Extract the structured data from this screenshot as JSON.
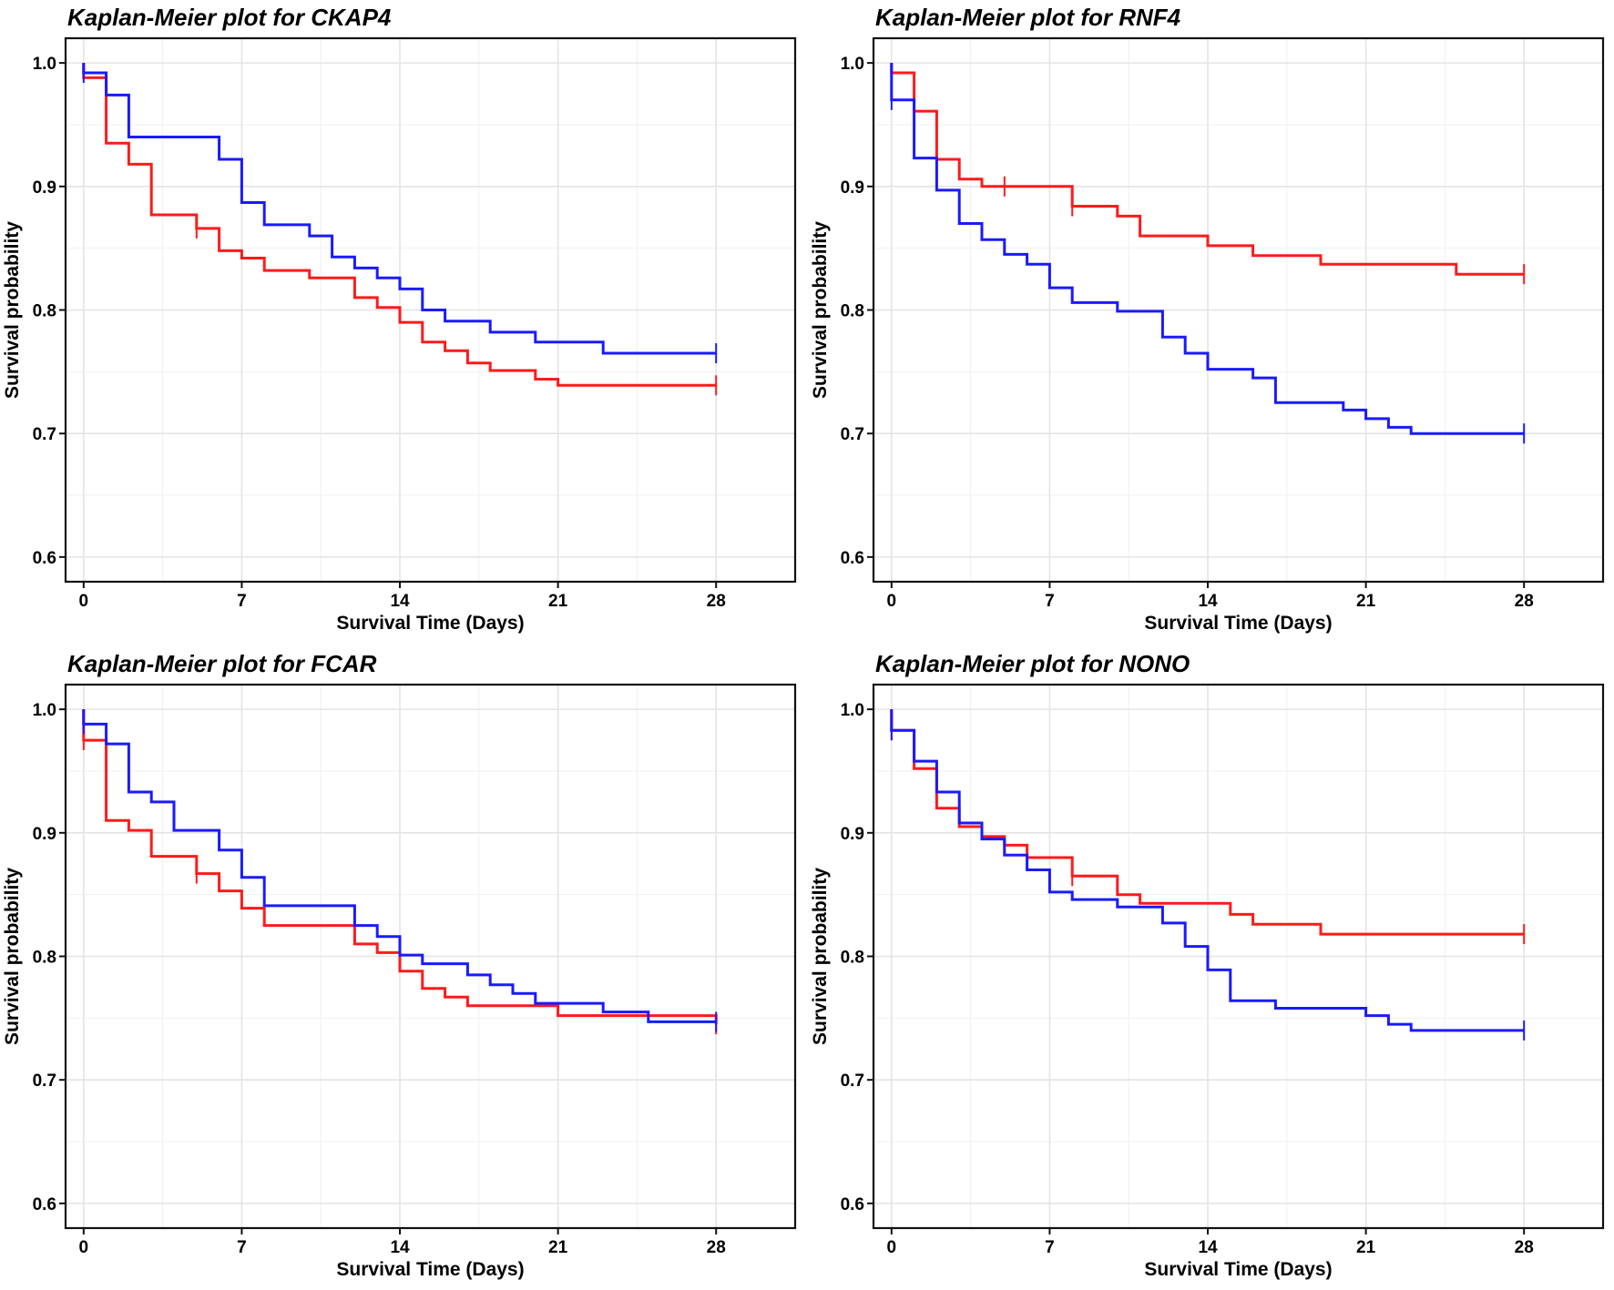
{
  "chart_data": [
    {
      "type": "line",
      "title": "Kaplan-Meier plot for CKAP4",
      "xlabel": "Survival Time (Days)",
      "ylabel": "Survival probability",
      "xlim": [
        -0.8,
        31.5
      ],
      "ylim": [
        0.58,
        1.02
      ],
      "xticks": [
        0,
        7,
        14,
        21,
        28
      ],
      "yticks": [
        0.6,
        0.7,
        0.8,
        0.9,
        1.0
      ],
      "yticklabels": [
        "0.6",
        "0.7",
        "0.8",
        "0.9",
        "1.0"
      ],
      "grid": true,
      "series": [
        {
          "name": "red",
          "color": "#ff1a1a",
          "x": [
            0,
            1,
            2,
            3,
            5,
            6,
            7,
            8,
            10,
            12,
            13,
            14,
            15,
            16,
            17,
            18,
            20,
            21,
            28
          ],
          "y": [
            0.988,
            0.935,
            0.918,
            0.877,
            0.866,
            0.848,
            0.842,
            0.832,
            0.826,
            0.81,
            0.802,
            0.79,
            0.774,
            0.767,
            0.757,
            0.751,
            0.744,
            0.739,
            0.739
          ],
          "censor": [
            [
              5,
              0.866
            ],
            [
              28,
              0.739
            ]
          ]
        },
        {
          "name": "blue",
          "color": "#1a1aff",
          "x": [
            0,
            1,
            2,
            6,
            7,
            8,
            10,
            11,
            12,
            13,
            14,
            15,
            16,
            18,
            20,
            23,
            28
          ],
          "y": [
            0.992,
            0.974,
            0.94,
            0.922,
            0.887,
            0.869,
            0.86,
            0.843,
            0.834,
            0.826,
            0.817,
            0.8,
            0.791,
            0.782,
            0.774,
            0.765,
            0.765
          ],
          "censor": [
            [
              0,
              0.992
            ],
            [
              28,
              0.765
            ]
          ]
        }
      ]
    },
    {
      "type": "line",
      "title": "Kaplan-Meier plot for RNF4",
      "xlabel": "Survival Time (Days)",
      "ylabel": "Survival probability",
      "xlim": [
        -0.8,
        31.5
      ],
      "ylim": [
        0.58,
        1.02
      ],
      "xticks": [
        0,
        7,
        14,
        21,
        28
      ],
      "yticks": [
        0.6,
        0.7,
        0.8,
        0.9,
        1.0
      ],
      "yticklabels": [
        "0.6",
        "0.7",
        "0.8",
        "0.9",
        "1.0"
      ],
      "grid": true,
      "series": [
        {
          "name": "red",
          "color": "#ff1a1a",
          "x": [
            0,
            1,
            2,
            3,
            4,
            8,
            10,
            11,
            14,
            16,
            19,
            25,
            28
          ],
          "y": [
            0.992,
            0.961,
            0.922,
            0.906,
            0.9,
            0.884,
            0.876,
            0.86,
            0.852,
            0.844,
            0.837,
            0.829,
            0.829
          ],
          "censor": [
            [
              0,
              0.992
            ],
            [
              5,
              0.9
            ],
            [
              8,
              0.884
            ],
            [
              28,
              0.829
            ]
          ]
        },
        {
          "name": "blue",
          "color": "#1a1aff",
          "x": [
            0,
            1,
            2,
            3,
            4,
            5,
            6,
            7,
            8,
            10,
            12,
            13,
            14,
            16,
            17,
            20,
            21,
            22,
            23,
            28
          ],
          "y": [
            0.97,
            0.923,
            0.897,
            0.87,
            0.857,
            0.845,
            0.837,
            0.818,
            0.806,
            0.799,
            0.778,
            0.765,
            0.752,
            0.745,
            0.725,
            0.719,
            0.712,
            0.705,
            0.7,
            0.7
          ],
          "censor": [
            [
              0,
              0.97
            ],
            [
              28,
              0.7
            ]
          ]
        }
      ]
    },
    {
      "type": "line",
      "title": "Kaplan-Meier plot for FCAR",
      "xlabel": "Survival Time (Days)",
      "ylabel": "Survival probability",
      "xlim": [
        -0.8,
        31.5
      ],
      "ylim": [
        0.58,
        1.02
      ],
      "xticks": [
        0,
        7,
        14,
        21,
        28
      ],
      "yticks": [
        0.6,
        0.7,
        0.8,
        0.9,
        1.0
      ],
      "yticklabels": [
        "0.6",
        "0.7",
        "0.8",
        "0.9",
        "1.0"
      ],
      "grid": true,
      "series": [
        {
          "name": "red",
          "color": "#ff1a1a",
          "x": [
            0,
            1,
            2,
            3,
            5,
            6,
            7,
            8,
            12,
            13,
            14,
            15,
            16,
            17,
            21,
            28
          ],
          "y": [
            0.975,
            0.91,
            0.902,
            0.881,
            0.867,
            0.853,
            0.839,
            0.825,
            0.81,
            0.803,
            0.788,
            0.774,
            0.767,
            0.76,
            0.752,
            0.745
          ],
          "censor": [
            [
              0,
              0.975
            ],
            [
              5,
              0.867
            ],
            [
              28,
              0.745
            ]
          ]
        },
        {
          "name": "blue",
          "color": "#1a1aff",
          "x": [
            0,
            1,
            2,
            3,
            4,
            6,
            7,
            8,
            12,
            13,
            14,
            15,
            17,
            18,
            19,
            20,
            23,
            25,
            28
          ],
          "y": [
            0.988,
            0.972,
            0.933,
            0.925,
            0.902,
            0.886,
            0.864,
            0.841,
            0.825,
            0.816,
            0.801,
            0.794,
            0.785,
            0.777,
            0.77,
            0.762,
            0.755,
            0.747,
            0.747
          ],
          "censor": [
            [
              0,
              0.988
            ],
            [
              28,
              0.747
            ]
          ]
        }
      ]
    },
    {
      "type": "line",
      "title": "Kaplan-Meier plot for NONO",
      "xlabel": "Survival Time (Days)",
      "ylabel": "Survival probability",
      "xlim": [
        -0.8,
        31.5
      ],
      "ylim": [
        0.58,
        1.02
      ],
      "xticks": [
        0,
        7,
        14,
        21,
        28
      ],
      "yticks": [
        0.6,
        0.7,
        0.8,
        0.9,
        1.0
      ],
      "yticklabels": [
        "0.6",
        "0.7",
        "0.8",
        "0.9",
        "1.0"
      ],
      "grid": true,
      "series": [
        {
          "name": "red",
          "color": "#ff1a1a",
          "x": [
            0,
            1,
            2,
            3,
            4,
            5,
            6,
            7,
            8,
            10,
            11,
            15,
            16,
            19,
            28
          ],
          "y": [
            0.983,
            0.952,
            0.92,
            0.905,
            0.897,
            0.89,
            0.88,
            0.88,
            0.865,
            0.85,
            0.843,
            0.834,
            0.826,
            0.818,
            0.818
          ],
          "censor": [
            [
              0,
              0.983
            ],
            [
              8,
              0.865
            ],
            [
              28,
              0.818
            ]
          ]
        },
        {
          "name": "blue",
          "color": "#1a1aff",
          "x": [
            0,
            1,
            2,
            3,
            4,
            5,
            6,
            7,
            8,
            10,
            12,
            13,
            14,
            15,
            17,
            21,
            22,
            23,
            28
          ],
          "y": [
            0.983,
            0.958,
            0.933,
            0.908,
            0.895,
            0.882,
            0.87,
            0.852,
            0.846,
            0.84,
            0.827,
            0.808,
            0.789,
            0.764,
            0.758,
            0.752,
            0.745,
            0.74,
            0.74
          ],
          "censor": [
            [
              0,
              0.983
            ],
            [
              28,
              0.74
            ]
          ]
        }
      ]
    }
  ]
}
